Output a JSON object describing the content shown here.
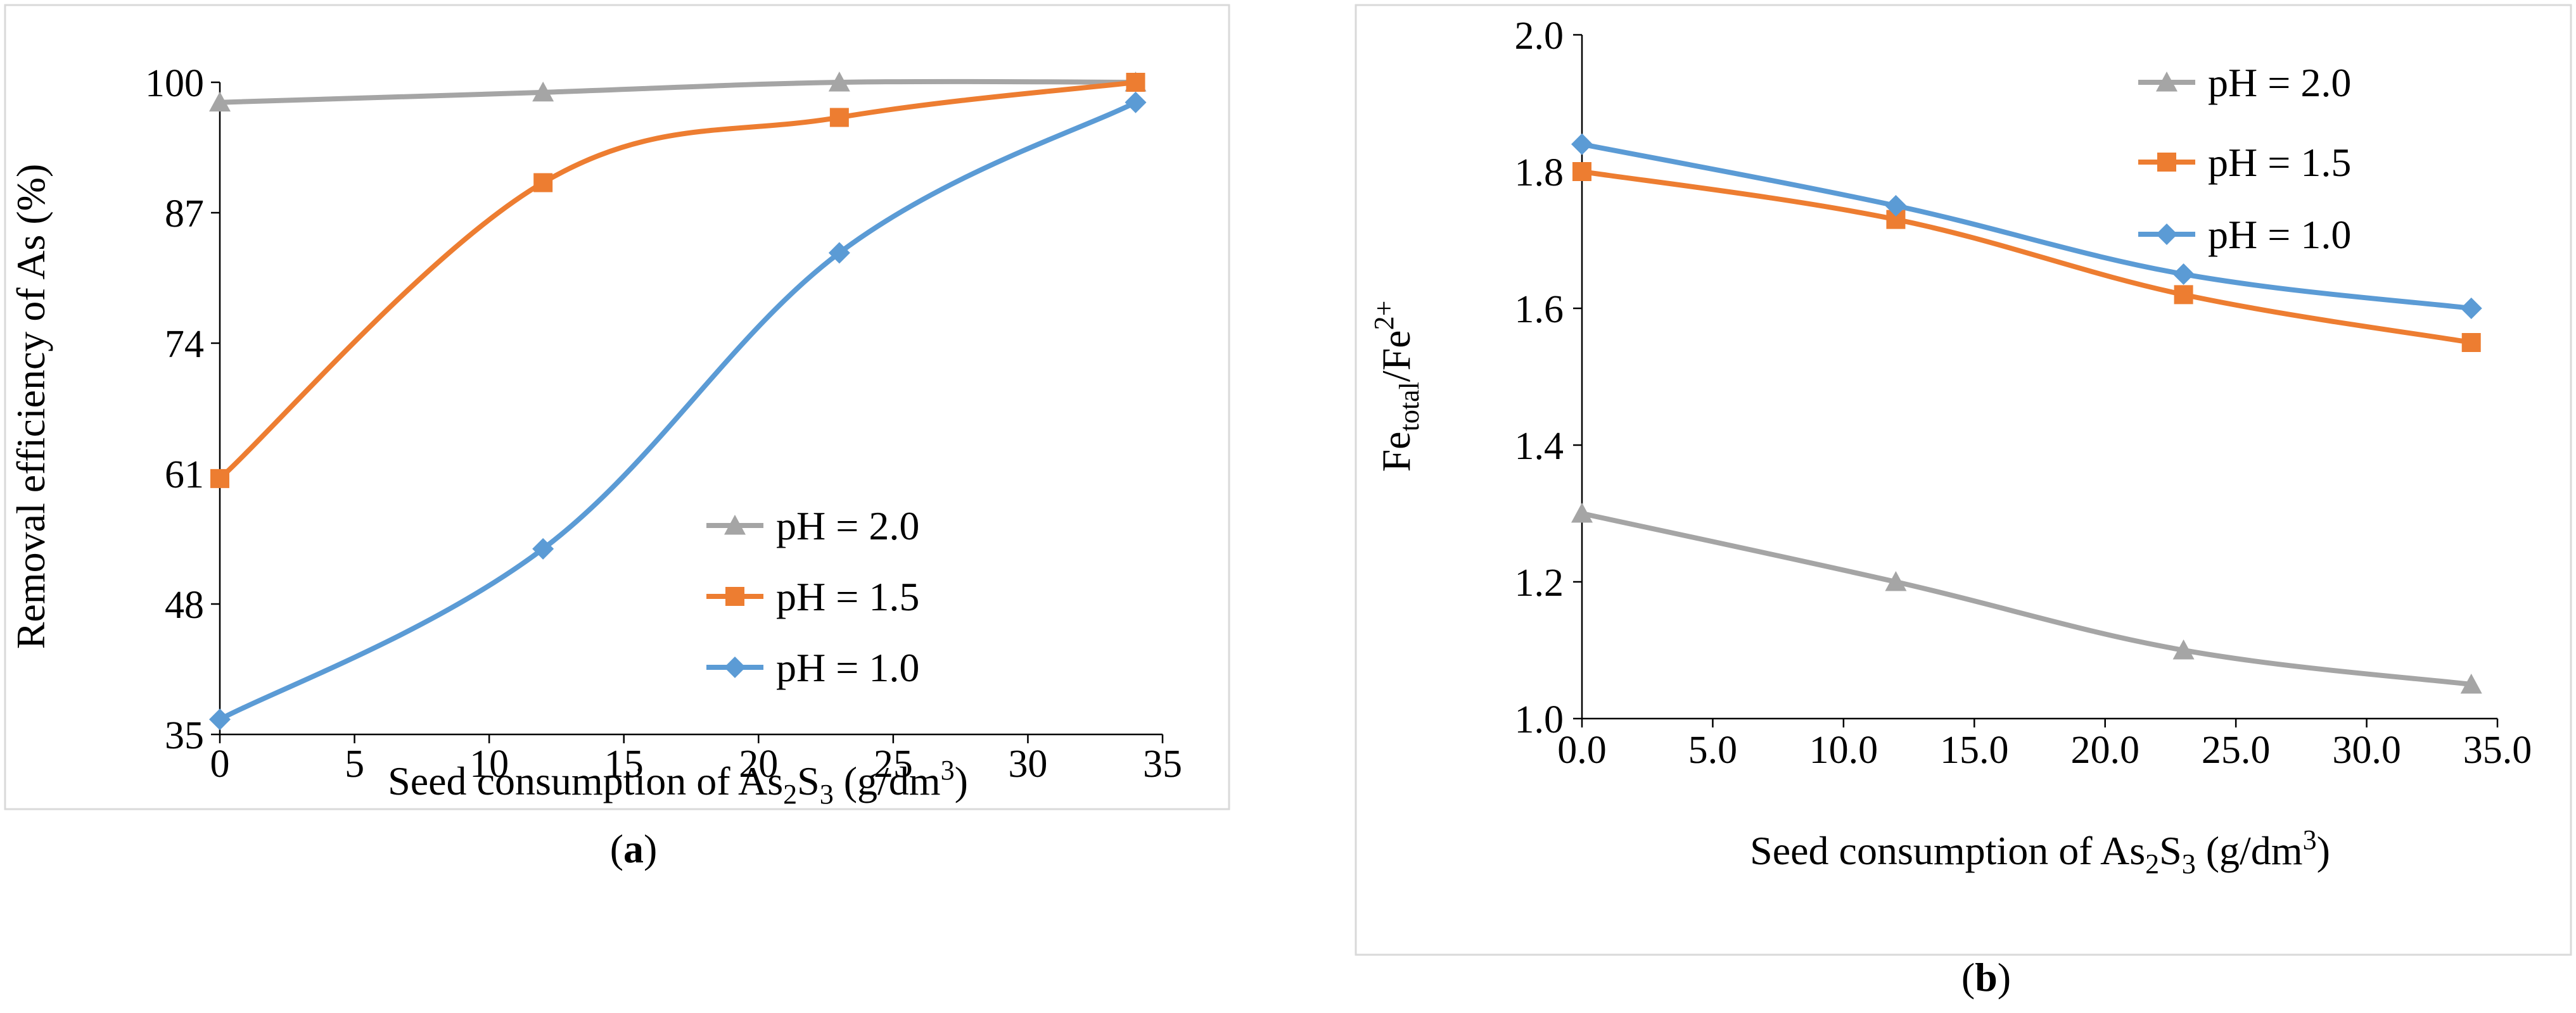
{
  "colors": {
    "ph20": "#a5a5a5",
    "ph15": "#ed7d31",
    "ph10": "#5b9bd5"
  },
  "chart_data": [
    {
      "type": "line",
      "panel_label": "a",
      "title": "",
      "xlabel": "Seed consumption of As",
      "xlabel_sub": "2",
      "xlabel_mid": "S",
      "xlabel_sub2": "3",
      "xlabel_end": " (g/dm",
      "xlabel_sup": "3",
      "xlabel_close": ")",
      "ylabel": "Removal efficiency of As (%)",
      "xlim": [
        0,
        35
      ],
      "ylim": [
        35,
        100
      ],
      "xticks": [
        0,
        5,
        10,
        15,
        20,
        25,
        30,
        35
      ],
      "xtick_labels": [
        "0",
        "5",
        "10",
        "15",
        "20",
        "25",
        "30",
        "35"
      ],
      "yticks": [
        35,
        48,
        61,
        74,
        87,
        100
      ],
      "ytick_labels": [
        "35",
        "48",
        "61",
        "74",
        "87",
        "100"
      ],
      "legend_position": "bottom-right",
      "series": [
        {
          "name": "pH = 2.0",
          "marker": "triangle",
          "color_key": "ph20",
          "x": [
            0,
            12,
            23,
            34
          ],
          "values": [
            98,
            99,
            100,
            100
          ]
        },
        {
          "name": "pH = 1.5",
          "marker": "square",
          "color_key": "ph15",
          "x": [
            0,
            12,
            23,
            34
          ],
          "values": [
            60.5,
            90,
            96.5,
            100
          ]
        },
        {
          "name": "pH = 1.0",
          "marker": "diamond",
          "color_key": "ph10",
          "x": [
            0,
            12,
            23,
            34
          ],
          "values": [
            36.5,
            53.5,
            83,
            98
          ]
        }
      ]
    },
    {
      "type": "line",
      "panel_label": "b",
      "title": "",
      "xlabel": "Seed consumption of As",
      "xlabel_sub": "2",
      "xlabel_mid": "S",
      "xlabel_sub2": "3",
      "xlabel_end": " (g/dm",
      "xlabel_sup": "3",
      "xlabel_close": ")",
      "ylabel": "Fe",
      "ylabel_sub": "total",
      "ylabel_mid": "/Fe",
      "ylabel_sup": "2+",
      "xlim": [
        0,
        35
      ],
      "ylim": [
        1.0,
        2.0
      ],
      "xticks": [
        0,
        5,
        10,
        15,
        20,
        25,
        30,
        35
      ],
      "xtick_labels": [
        "0.0",
        "5.0",
        "10.0",
        "15.0",
        "20.0",
        "25.0",
        "30.0",
        "35.0"
      ],
      "yticks": [
        1.0,
        1.2,
        1.4,
        1.6,
        1.8,
        2.0
      ],
      "ytick_labels": [
        "1.0",
        "1.2",
        "1.4",
        "1.6",
        "1.8",
        "2.0"
      ],
      "legend_position": "top-right",
      "series": [
        {
          "name": "pH = 2.0",
          "marker": "triangle",
          "color_key": "ph20",
          "x": [
            0,
            12,
            23,
            34
          ],
          "values": [
            1.3,
            1.2,
            1.1,
            1.05
          ]
        },
        {
          "name": "pH = 1.5",
          "marker": "square",
          "color_key": "ph15",
          "x": [
            0,
            12,
            23,
            34
          ],
          "values": [
            1.8,
            1.73,
            1.62,
            1.55
          ]
        },
        {
          "name": "pH = 1.0",
          "marker": "diamond",
          "color_key": "ph10",
          "x": [
            0,
            12,
            23,
            34
          ],
          "values": [
            1.84,
            1.75,
            1.65,
            1.6
          ]
        }
      ]
    }
  ]
}
